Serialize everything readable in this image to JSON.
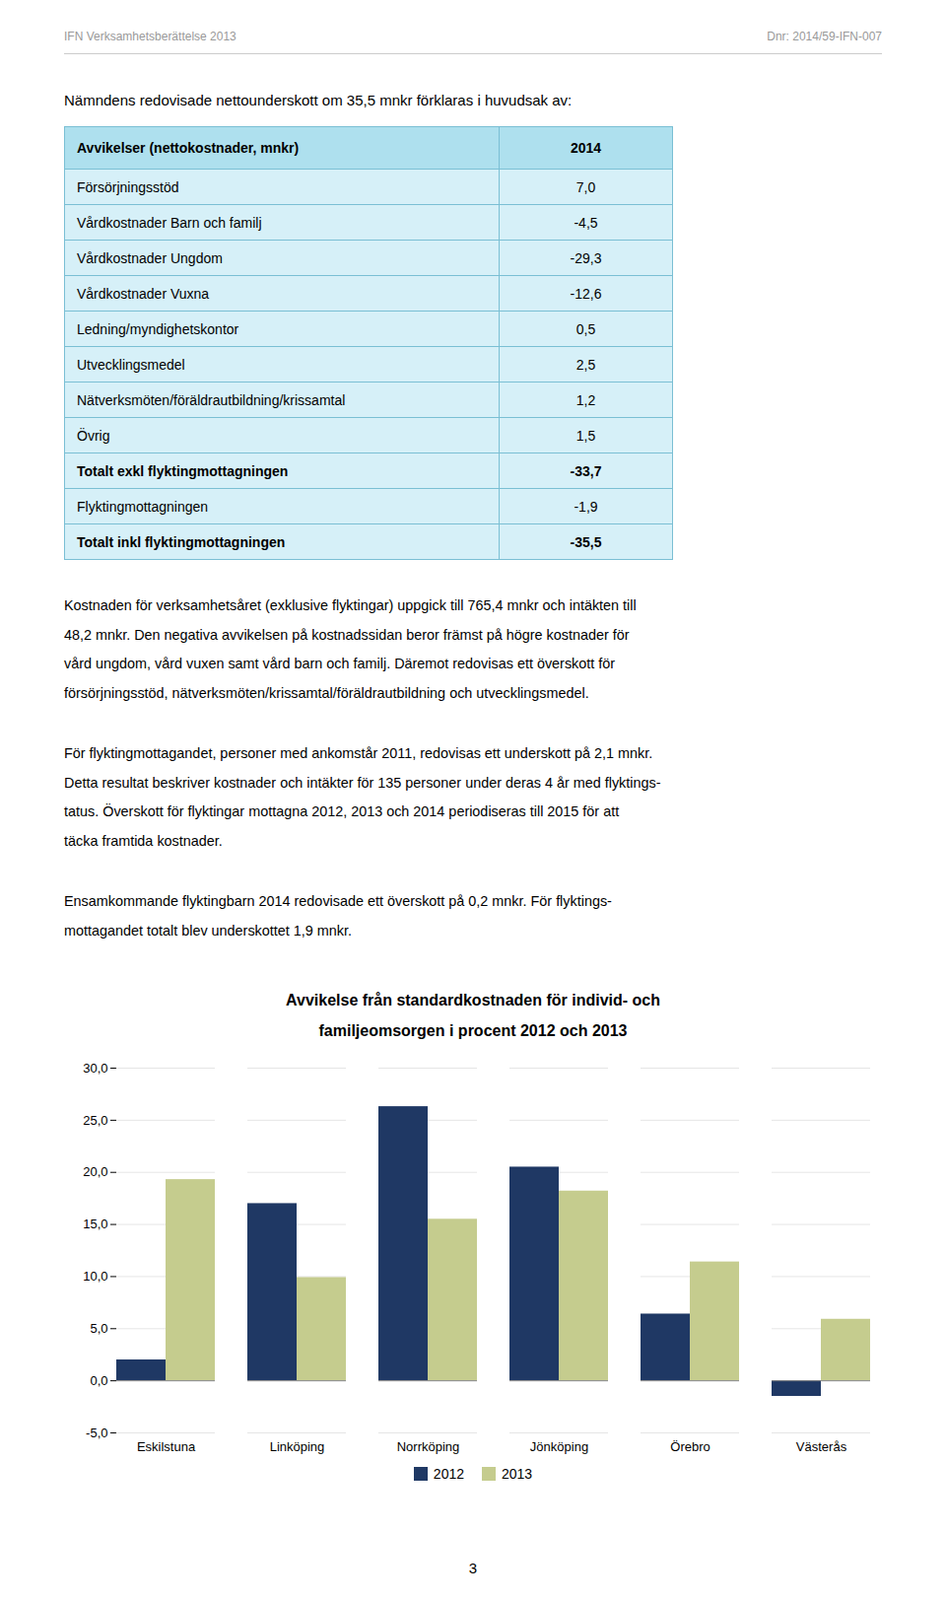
{
  "header_left": "IFN Verksamhetsberättelse 2013",
  "header_right": "Dnr: 2014/59-IFN-007",
  "intro_text": "Nämndens redovisade nettounderskott om 35,5 mnkr förklaras i huvudsak av:",
  "table": {
    "columns": [
      "Avvikelser (nettokostnader, mnkr)",
      "2014"
    ],
    "header_color": "#AEE0EE",
    "row_color": "#D6F0F8",
    "border_color": "#7ABFD4",
    "rows": [
      {
        "label": "Försörjningsstöd",
        "value": "7,0",
        "bold": false
      },
      {
        "label": "Vårdkostnader Barn och familj",
        "value": "-4,5",
        "bold": false
      },
      {
        "label": "Vårdkostnader Ungdom",
        "value": "-29,3",
        "bold": false
      },
      {
        "label": "Vårdkostnader Vuxna",
        "value": "-12,6",
        "bold": false
      },
      {
        "label": "Ledning/myndighetskontor",
        "value": "0,5",
        "bold": false
      },
      {
        "label": "Utvecklingsmedel",
        "value": "2,5",
        "bold": false
      },
      {
        "label": "Nätverksmöten/föräldrautbildning/krissamtal",
        "value": "1,2",
        "bold": false
      },
      {
        "label": "Övrig",
        "value": "1,5",
        "bold": false
      },
      {
        "label": "Totalt exkl flyktingmottagningen",
        "value": "-33,7",
        "bold": true
      },
      {
        "label": "Flyktingmottagningen",
        "value": "-1,9",
        "bold": false
      },
      {
        "label": "Totalt inkl flyktingmottagningen",
        "value": "-35,5",
        "bold": true
      }
    ]
  },
  "paragraphs": [
    [
      "Kostnaden för verksamhetsåret (exklusive flyktingar) uppgick till 765,4 mnkr och intäkten till",
      "48,2 mnkr. Den negativa avvikelsen på kostnadssidan beror främst på högre kostnader för",
      "vård ungdom, vård vuxen samt vård barn och familj. Däremot redovisas ett överskott för",
      "försörjningsstöd, nätverksmöten/krissamtal/föräldrautbildning och utvecklingsmedel."
    ],
    [
      "För flyktingmottagandet, personer med ankomstår 2011, redovisas ett underskott på 2,1 mnkr.",
      "Detta resultat beskriver kostnader och intäkter för 135 personer under deras 4 år med flyktings-",
      "tatus. Överskott för flyktingar mottagna 2012, 2013 och 2014 periodiseras till 2015 för att",
      "täcka framtida kostnader."
    ],
    [
      "Ensamkommande flyktingbarn 2014 redovisade ett överskott på 0,2 mnkr. För flyktings-",
      "mottagandet totalt blev underskottet 1,9 mnkr."
    ]
  ],
  "page_number": "3",
  "chart_data": {
    "type": "bar",
    "title": "Avvikelse från standardkostnaden för individ- och familjeomsorgen i procent 2012 och 2013",
    "categories": [
      "Eskilstuna",
      "Linköping",
      "Norrköping",
      "Jönköping",
      "Örebro",
      "Västerås"
    ],
    "series": [
      {
        "name": "2012",
        "color": "#1F3864",
        "values": [
          2.0,
          17.0,
          26.3,
          20.5,
          6.4,
          -1.5
        ]
      },
      {
        "name": "2013",
        "color": "#C5CC8E",
        "values": [
          19.3,
          9.9,
          15.5,
          18.2,
          11.4,
          5.9
        ]
      }
    ],
    "ylim": [
      -5,
      30
    ],
    "yticks": [
      {
        "value": -5,
        "label": "-5,0"
      },
      {
        "value": 0,
        "label": "0,0"
      },
      {
        "value": 5,
        "label": "5,0"
      },
      {
        "value": 10,
        "label": "10,0"
      },
      {
        "value": 15,
        "label": "15,0"
      },
      {
        "value": 20,
        "label": "20,0"
      },
      {
        "value": 25,
        "label": "25,0"
      },
      {
        "value": 30,
        "label": "30,0"
      }
    ],
    "grid": true,
    "legend": "bottom"
  }
}
